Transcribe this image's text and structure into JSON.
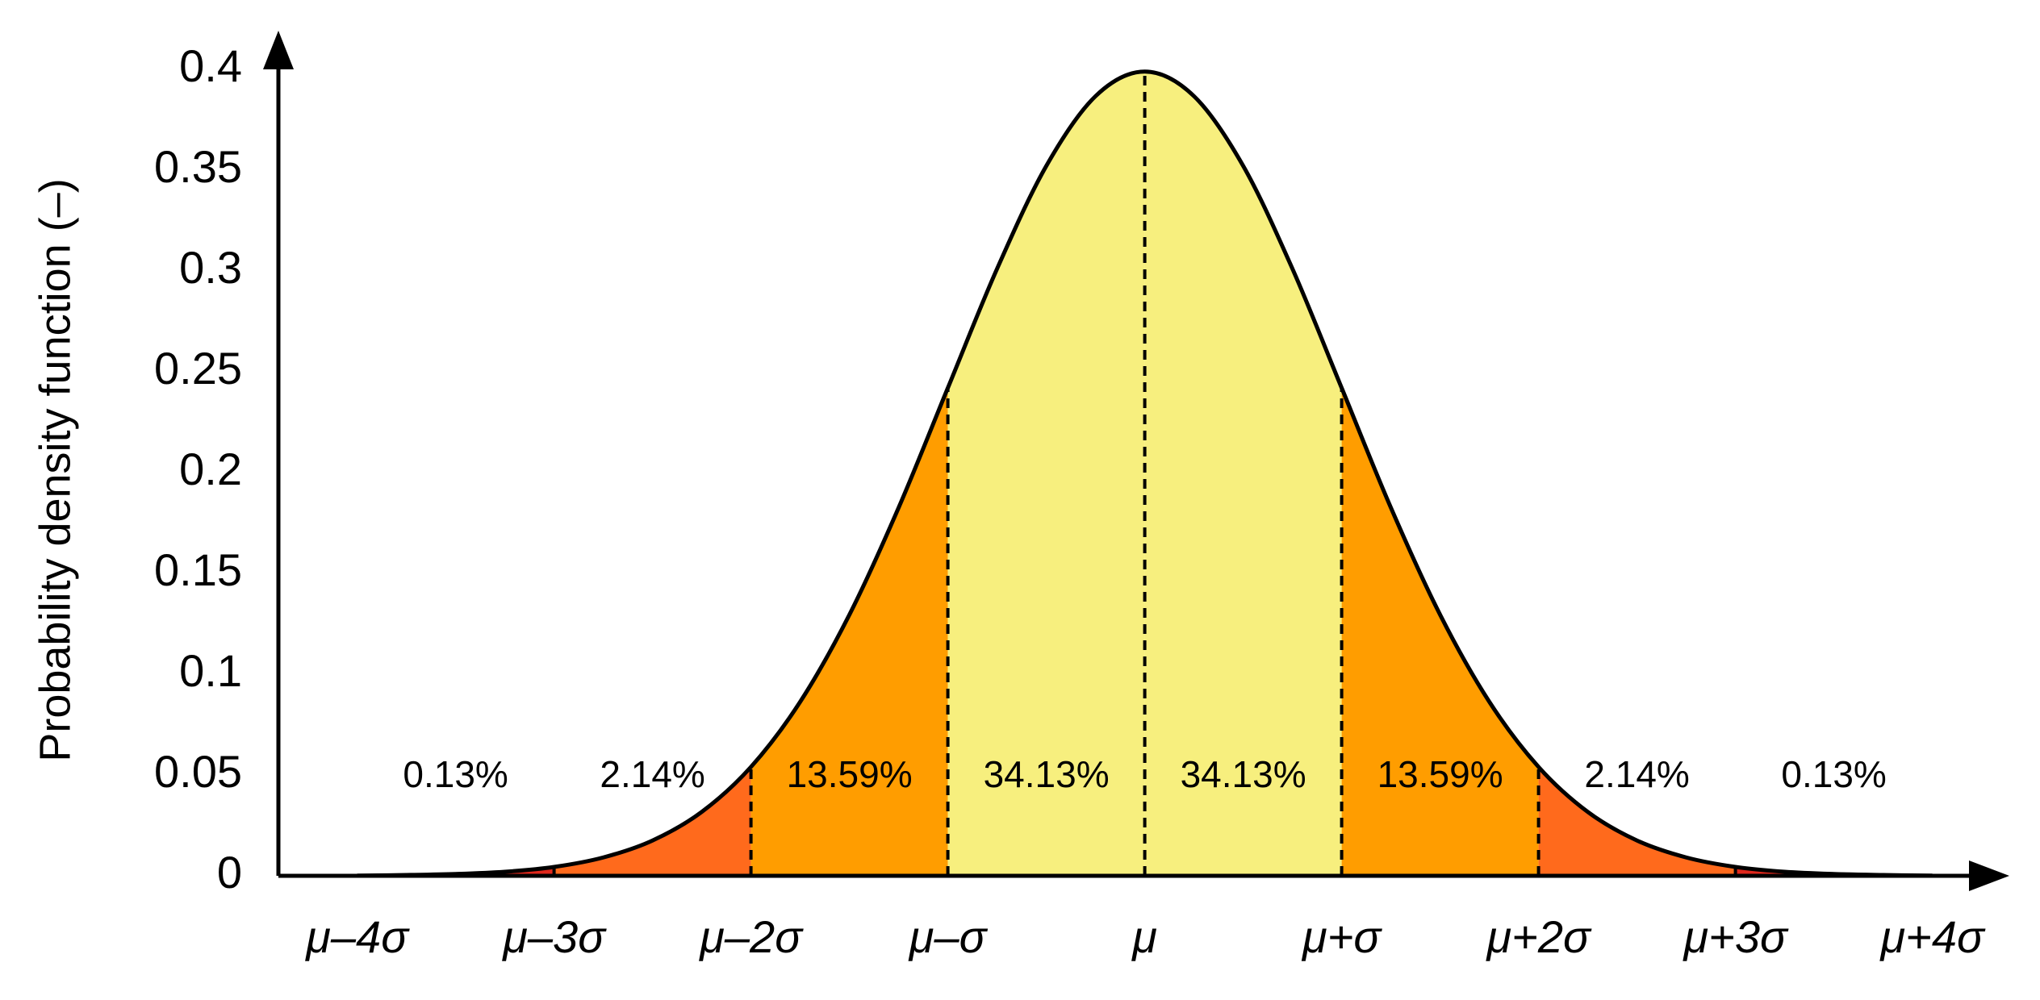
{
  "chart_data": {
    "type": "area",
    "y_label": "Probability density function (–)",
    "x": [
      -4,
      -3.75,
      -3.5,
      -3.25,
      -3,
      -2.75,
      -2.5,
      -2.25,
      -2,
      -1.75,
      -1.5,
      -1.25,
      -1,
      -0.75,
      -0.5,
      -0.25,
      0,
      0.25,
      0.5,
      0.75,
      1,
      1.25,
      1.5,
      1.75,
      2,
      2.25,
      2.5,
      2.75,
      3,
      3.25,
      3.5,
      3.75,
      4
    ],
    "values": [
      0.0001,
      0.0004,
      0.0009,
      0.002,
      0.0044,
      0.0091,
      0.0175,
      0.0317,
      0.054,
      0.0863,
      0.1295,
      0.1826,
      0.242,
      0.3011,
      0.3521,
      0.3867,
      0.3989,
      0.3867,
      0.3521,
      0.3011,
      0.242,
      0.1826,
      0.1295,
      0.0863,
      0.054,
      0.0317,
      0.0175,
      0.0091,
      0.0044,
      0.002,
      0.0009,
      0.0004,
      0.0001
    ],
    "line_color": "#000000",
    "regions": {
      "edges": [
        -4,
        -3,
        -2,
        -1,
        0,
        1,
        2,
        3,
        4
      ],
      "values": [
        0.13,
        2.14,
        13.59,
        34.13,
        34.13,
        13.59,
        2.14,
        0.13
      ],
      "value_labels": [
        "0.13%",
        "2.14%",
        "13.59%",
        "34.13%",
        "34.13%",
        "13.59%",
        "2.14%",
        "0.13%"
      ],
      "colors": [
        "#e0281c",
        "#ff6a1c",
        "#ff9d00",
        "#f7ef7e",
        "#f7ef7e",
        "#ff9d00",
        "#ff6a1c",
        "#e0281c"
      ]
    },
    "xlim": [
      -4.4,
      4.4
    ],
    "xticks": [
      {
        "value": -4,
        "label": "μ–4σ"
      },
      {
        "value": -3,
        "label": "μ–3σ"
      },
      {
        "value": -2,
        "label": "μ–2σ"
      },
      {
        "value": -1,
        "label": "μ–σ"
      },
      {
        "value": 0,
        "label": "μ"
      },
      {
        "value": 1,
        "label": "μ+σ"
      },
      {
        "value": 2,
        "label": "μ+2σ"
      },
      {
        "value": 3,
        "label": "μ+3σ"
      },
      {
        "value": 4,
        "label": "μ+4σ"
      }
    ],
    "ylim": [
      0,
      0.4
    ],
    "yticks": [
      0,
      0.05,
      0.1,
      0.15,
      0.2,
      0.25,
      0.3,
      0.35,
      0.4
    ],
    "grid": false
  }
}
